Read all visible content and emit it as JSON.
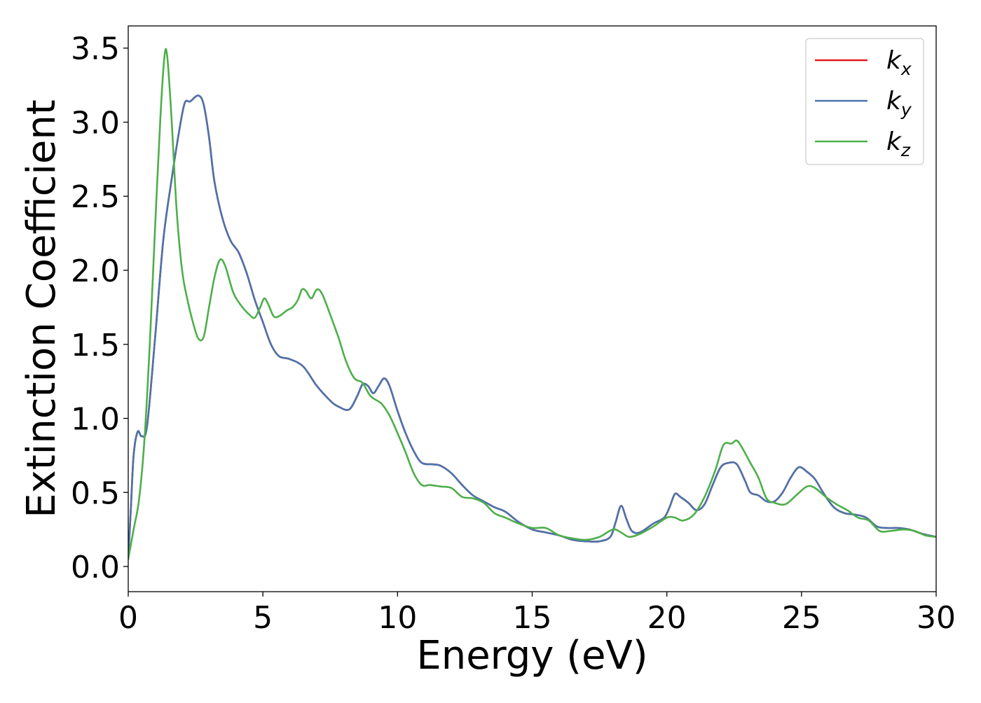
{
  "chart_data": {
    "type": "line",
    "title": "",
    "xlabel": "Energy (eV)",
    "ylabel": "Extinction Coefficient",
    "xlim": [
      0,
      30
    ],
    "ylim": [
      -0.17,
      3.65
    ],
    "xticks": [
      0,
      5,
      10,
      15,
      20,
      25,
      30
    ],
    "xtick_labels": [
      "0",
      "5",
      "10",
      "15",
      "20",
      "25",
      "30"
    ],
    "yticks": [
      0.0,
      0.5,
      1.0,
      1.5,
      2.0,
      2.5,
      3.0,
      3.5
    ],
    "ytick_labels": [
      "0.0",
      "0.5",
      "1.0",
      "1.5",
      "2.0",
      "2.5",
      "3.0",
      "3.5"
    ],
    "grid": false,
    "legend_position": "top-right",
    "series": [
      {
        "name": "k_x",
        "label_base": "k",
        "label_sub": "x",
        "color": "#e41a1c",
        "points": [
          [
            0,
            0.05
          ],
          [
            0.1,
            0.4
          ],
          [
            0.2,
            0.75
          ],
          [
            0.35,
            0.91
          ],
          [
            0.5,
            0.88
          ],
          [
            0.7,
            0.95
          ],
          [
            1.0,
            1.55
          ],
          [
            1.3,
            2.2
          ],
          [
            1.6,
            2.6
          ],
          [
            1.9,
            2.95
          ],
          [
            2.1,
            3.13
          ],
          [
            2.3,
            3.14
          ],
          [
            2.6,
            3.18
          ],
          [
            2.8,
            3.12
          ],
          [
            3.0,
            2.9
          ],
          [
            3.2,
            2.6
          ],
          [
            3.5,
            2.35
          ],
          [
            3.8,
            2.2
          ],
          [
            4.1,
            2.12
          ],
          [
            4.4,
            1.98
          ],
          [
            4.7,
            1.8
          ],
          [
            5.0,
            1.65
          ],
          [
            5.3,
            1.5
          ],
          [
            5.6,
            1.42
          ],
          [
            6.0,
            1.4
          ],
          [
            6.5,
            1.35
          ],
          [
            7.0,
            1.22
          ],
          [
            7.5,
            1.12
          ],
          [
            7.8,
            1.08
          ],
          [
            8.2,
            1.06
          ],
          [
            8.5,
            1.15
          ],
          [
            8.7,
            1.23
          ],
          [
            8.9,
            1.22
          ],
          [
            9.1,
            1.17
          ],
          [
            9.3,
            1.22
          ],
          [
            9.5,
            1.27
          ],
          [
            9.7,
            1.22
          ],
          [
            10.0,
            1.05
          ],
          [
            10.3,
            0.9
          ],
          [
            10.6,
            0.78
          ],
          [
            10.9,
            0.7
          ],
          [
            11.3,
            0.69
          ],
          [
            11.6,
            0.68
          ],
          [
            12.0,
            0.63
          ],
          [
            12.4,
            0.55
          ],
          [
            12.8,
            0.48
          ],
          [
            13.2,
            0.44
          ],
          [
            13.6,
            0.4
          ],
          [
            14.0,
            0.37
          ],
          [
            14.5,
            0.3
          ],
          [
            15.0,
            0.25
          ],
          [
            15.5,
            0.23
          ],
          [
            16.0,
            0.21
          ],
          [
            16.5,
            0.18
          ],
          [
            17.0,
            0.17
          ],
          [
            17.5,
            0.17
          ],
          [
            17.9,
            0.2
          ],
          [
            18.1,
            0.3
          ],
          [
            18.3,
            0.41
          ],
          [
            18.5,
            0.32
          ],
          [
            18.7,
            0.24
          ],
          [
            19.0,
            0.23
          ],
          [
            19.5,
            0.29
          ],
          [
            19.9,
            0.33
          ],
          [
            20.1,
            0.4
          ],
          [
            20.3,
            0.49
          ],
          [
            20.5,
            0.47
          ],
          [
            20.8,
            0.43
          ],
          [
            21.1,
            0.38
          ],
          [
            21.4,
            0.42
          ],
          [
            21.7,
            0.55
          ],
          [
            22.0,
            0.67
          ],
          [
            22.3,
            0.7
          ],
          [
            22.6,
            0.69
          ],
          [
            22.9,
            0.58
          ],
          [
            23.1,
            0.5
          ],
          [
            23.4,
            0.48
          ],
          [
            23.7,
            0.44
          ],
          [
            24.0,
            0.44
          ],
          [
            24.3,
            0.5
          ],
          [
            24.6,
            0.6
          ],
          [
            24.9,
            0.67
          ],
          [
            25.2,
            0.64
          ],
          [
            25.5,
            0.59
          ],
          [
            25.8,
            0.5
          ],
          [
            26.2,
            0.4
          ],
          [
            26.6,
            0.36
          ],
          [
            27.0,
            0.35
          ],
          [
            27.4,
            0.33
          ],
          [
            27.8,
            0.27
          ],
          [
            28.2,
            0.26
          ],
          [
            28.6,
            0.26
          ],
          [
            29.0,
            0.25
          ],
          [
            29.5,
            0.22
          ],
          [
            30.0,
            0.2
          ]
        ]
      },
      {
        "name": "k_y",
        "label_base": "k",
        "label_sub": "y",
        "color": "#4a74ac",
        "points": [
          [
            0,
            0.05
          ],
          [
            0.1,
            0.4
          ],
          [
            0.2,
            0.75
          ],
          [
            0.35,
            0.91
          ],
          [
            0.5,
            0.88
          ],
          [
            0.7,
            0.95
          ],
          [
            1.0,
            1.55
          ],
          [
            1.3,
            2.2
          ],
          [
            1.6,
            2.6
          ],
          [
            1.9,
            2.95
          ],
          [
            2.1,
            3.13
          ],
          [
            2.3,
            3.14
          ],
          [
            2.6,
            3.18
          ],
          [
            2.8,
            3.12
          ],
          [
            3.0,
            2.9
          ],
          [
            3.2,
            2.6
          ],
          [
            3.5,
            2.35
          ],
          [
            3.8,
            2.2
          ],
          [
            4.1,
            2.12
          ],
          [
            4.4,
            1.98
          ],
          [
            4.7,
            1.8
          ],
          [
            5.0,
            1.65
          ],
          [
            5.3,
            1.5
          ],
          [
            5.6,
            1.42
          ],
          [
            6.0,
            1.4
          ],
          [
            6.5,
            1.35
          ],
          [
            7.0,
            1.22
          ],
          [
            7.5,
            1.12
          ],
          [
            7.8,
            1.08
          ],
          [
            8.2,
            1.06
          ],
          [
            8.5,
            1.15
          ],
          [
            8.7,
            1.23
          ],
          [
            8.9,
            1.22
          ],
          [
            9.1,
            1.17
          ],
          [
            9.3,
            1.22
          ],
          [
            9.5,
            1.27
          ],
          [
            9.7,
            1.22
          ],
          [
            10.0,
            1.05
          ],
          [
            10.3,
            0.9
          ],
          [
            10.6,
            0.78
          ],
          [
            10.9,
            0.7
          ],
          [
            11.3,
            0.69
          ],
          [
            11.6,
            0.68
          ],
          [
            12.0,
            0.63
          ],
          [
            12.4,
            0.55
          ],
          [
            12.8,
            0.48
          ],
          [
            13.2,
            0.44
          ],
          [
            13.6,
            0.4
          ],
          [
            14.0,
            0.37
          ],
          [
            14.5,
            0.3
          ],
          [
            15.0,
            0.25
          ],
          [
            15.5,
            0.23
          ],
          [
            16.0,
            0.21
          ],
          [
            16.5,
            0.18
          ],
          [
            17.0,
            0.17
          ],
          [
            17.5,
            0.17
          ],
          [
            17.9,
            0.2
          ],
          [
            18.1,
            0.3
          ],
          [
            18.3,
            0.41
          ],
          [
            18.5,
            0.32
          ],
          [
            18.7,
            0.24
          ],
          [
            19.0,
            0.23
          ],
          [
            19.5,
            0.29
          ],
          [
            19.9,
            0.33
          ],
          [
            20.1,
            0.4
          ],
          [
            20.3,
            0.49
          ],
          [
            20.5,
            0.47
          ],
          [
            20.8,
            0.43
          ],
          [
            21.1,
            0.38
          ],
          [
            21.4,
            0.42
          ],
          [
            21.7,
            0.55
          ],
          [
            22.0,
            0.67
          ],
          [
            22.3,
            0.7
          ],
          [
            22.6,
            0.69
          ],
          [
            22.9,
            0.58
          ],
          [
            23.1,
            0.5
          ],
          [
            23.4,
            0.48
          ],
          [
            23.7,
            0.44
          ],
          [
            24.0,
            0.44
          ],
          [
            24.3,
            0.5
          ],
          [
            24.6,
            0.6
          ],
          [
            24.9,
            0.67
          ],
          [
            25.2,
            0.64
          ],
          [
            25.5,
            0.59
          ],
          [
            25.8,
            0.5
          ],
          [
            26.2,
            0.4
          ],
          [
            26.6,
            0.36
          ],
          [
            27.0,
            0.35
          ],
          [
            27.4,
            0.33
          ],
          [
            27.8,
            0.27
          ],
          [
            28.2,
            0.26
          ],
          [
            28.6,
            0.26
          ],
          [
            29.0,
            0.25
          ],
          [
            29.5,
            0.22
          ],
          [
            30.0,
            0.2
          ]
        ]
      },
      {
        "name": "k_z",
        "label_base": "k",
        "label_sub": "z",
        "color": "#4daf4a",
        "points": [
          [
            0,
            0.05
          ],
          [
            0.2,
            0.25
          ],
          [
            0.4,
            0.45
          ],
          [
            0.6,
            0.85
          ],
          [
            0.8,
            1.5
          ],
          [
            1.0,
            2.3
          ],
          [
            1.2,
            3.05
          ],
          [
            1.35,
            3.45
          ],
          [
            1.45,
            3.44
          ],
          [
            1.6,
            3.05
          ],
          [
            1.8,
            2.4
          ],
          [
            2.0,
            2.0
          ],
          [
            2.2,
            1.8
          ],
          [
            2.4,
            1.65
          ],
          [
            2.6,
            1.54
          ],
          [
            2.8,
            1.55
          ],
          [
            3.0,
            1.75
          ],
          [
            3.2,
            1.95
          ],
          [
            3.4,
            2.07
          ],
          [
            3.6,
            2.03
          ],
          [
            3.9,
            1.85
          ],
          [
            4.2,
            1.76
          ],
          [
            4.5,
            1.7
          ],
          [
            4.7,
            1.68
          ],
          [
            4.9,
            1.75
          ],
          [
            5.05,
            1.81
          ],
          [
            5.2,
            1.77
          ],
          [
            5.4,
            1.69
          ],
          [
            5.6,
            1.69
          ],
          [
            5.9,
            1.73
          ],
          [
            6.1,
            1.75
          ],
          [
            6.3,
            1.8
          ],
          [
            6.45,
            1.87
          ],
          [
            6.6,
            1.86
          ],
          [
            6.8,
            1.81
          ],
          [
            7.0,
            1.87
          ],
          [
            7.2,
            1.84
          ],
          [
            7.5,
            1.7
          ],
          [
            7.8,
            1.55
          ],
          [
            8.1,
            1.38
          ],
          [
            8.4,
            1.27
          ],
          [
            8.7,
            1.24
          ],
          [
            9.0,
            1.15
          ],
          [
            9.4,
            1.1
          ],
          [
            9.7,
            1.02
          ],
          [
            10.0,
            0.9
          ],
          [
            10.3,
            0.77
          ],
          [
            10.6,
            0.63
          ],
          [
            10.9,
            0.55
          ],
          [
            11.2,
            0.55
          ],
          [
            11.6,
            0.54
          ],
          [
            12.0,
            0.53
          ],
          [
            12.4,
            0.47
          ],
          [
            12.8,
            0.46
          ],
          [
            13.2,
            0.43
          ],
          [
            13.6,
            0.36
          ],
          [
            14.0,
            0.33
          ],
          [
            14.5,
            0.29
          ],
          [
            15.0,
            0.26
          ],
          [
            15.5,
            0.26
          ],
          [
            16.0,
            0.21
          ],
          [
            16.5,
            0.19
          ],
          [
            17.0,
            0.18
          ],
          [
            17.5,
            0.2
          ],
          [
            18.0,
            0.25
          ],
          [
            18.3,
            0.23
          ],
          [
            18.6,
            0.2
          ],
          [
            19.0,
            0.22
          ],
          [
            19.5,
            0.27
          ],
          [
            20.0,
            0.33
          ],
          [
            20.3,
            0.33
          ],
          [
            20.6,
            0.31
          ],
          [
            21.0,
            0.35
          ],
          [
            21.4,
            0.47
          ],
          [
            21.8,
            0.65
          ],
          [
            22.1,
            0.82
          ],
          [
            22.4,
            0.83
          ],
          [
            22.6,
            0.85
          ],
          [
            22.8,
            0.8
          ],
          [
            23.1,
            0.7
          ],
          [
            23.4,
            0.6
          ],
          [
            23.7,
            0.46
          ],
          [
            24.0,
            0.43
          ],
          [
            24.4,
            0.42
          ],
          [
            24.8,
            0.48
          ],
          [
            25.2,
            0.54
          ],
          [
            25.5,
            0.53
          ],
          [
            25.9,
            0.47
          ],
          [
            26.3,
            0.42
          ],
          [
            26.7,
            0.38
          ],
          [
            27.1,
            0.33
          ],
          [
            27.5,
            0.31
          ],
          [
            27.9,
            0.24
          ],
          [
            28.3,
            0.24
          ],
          [
            28.8,
            0.25
          ],
          [
            29.2,
            0.24
          ],
          [
            29.6,
            0.21
          ],
          [
            30.0,
            0.2
          ]
        ]
      }
    ]
  }
}
